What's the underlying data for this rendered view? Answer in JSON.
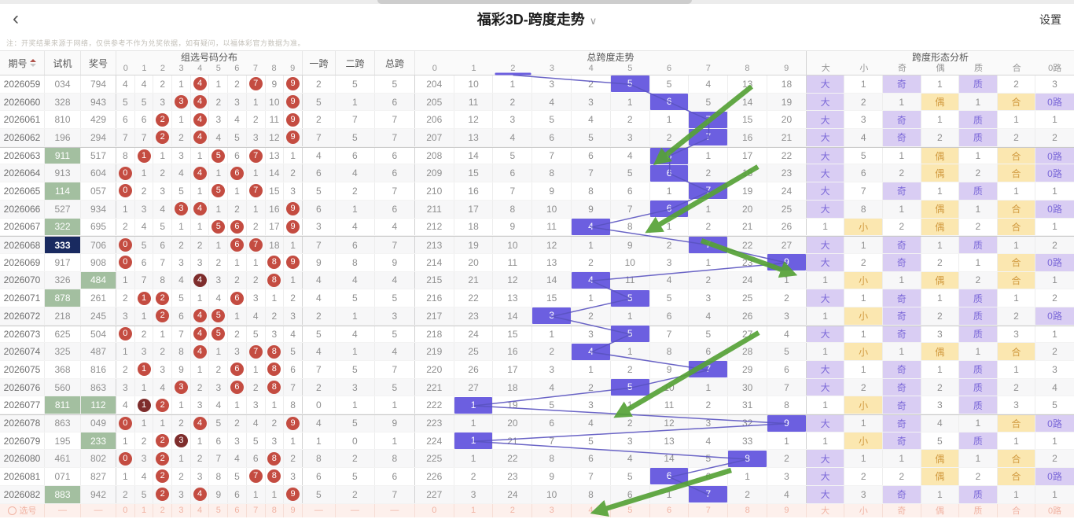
{
  "topbar": {
    "back": "‹",
    "title": "福彩3D-跨度走势",
    "caret": "∨",
    "settings": "设置"
  },
  "note": "注：开奖结果来源于网络，仅供参考不作为兑奖依据，如有疑问，以福体彩官方数据为准。",
  "table": {
    "headers": {
      "issue": "期号",
      "test": "试机",
      "prize": "奖号",
      "dist": "组选号码分布",
      "span1": "一跨",
      "span2": "二跨",
      "span_total": "总跨",
      "trend": "总跨度走势",
      "form": "跨度形态分析"
    },
    "dist_cols": [
      "0",
      "1",
      "2",
      "3",
      "4",
      "5",
      "6",
      "7",
      "8",
      "9"
    ],
    "trend_cols": [
      "0",
      "1",
      "2",
      "3",
      "4",
      "5",
      "6",
      "7",
      "8",
      "9"
    ],
    "form_cols": [
      "大",
      "小",
      "奇",
      "偶",
      "质",
      "合",
      "0路"
    ],
    "rows": [
      {
        "issue": "2026059",
        "test": "034",
        "test_hl": "",
        "prize": "794",
        "prize_hl": "",
        "dist": [
          "4",
          "4",
          "2",
          "1",
          "4r",
          "1",
          "2",
          "7r",
          "9",
          "9r"
        ],
        "spans": [
          "2",
          "5",
          "5"
        ],
        "trend": [
          "204",
          "10",
          "1",
          "3",
          "2",
          "5",
          "5",
          "4",
          "13",
          "18"
        ],
        "hit": 5,
        "form": [
          "大p",
          "1",
          "奇p",
          "1",
          "质p",
          "2",
          "3"
        ]
      },
      {
        "issue": "2026060",
        "test": "328",
        "test_hl": "",
        "prize": "943",
        "prize_hl": "",
        "dist": [
          "5",
          "5",
          "3",
          "3r",
          "4r",
          "2",
          "3",
          "1",
          "10",
          "9r"
        ],
        "spans": [
          "5",
          "1",
          "6"
        ],
        "trend": [
          "205",
          "11",
          "2",
          "4",
          "3",
          "1",
          "6",
          "5",
          "14",
          "19"
        ],
        "hit": 6,
        "form": [
          "大p",
          "2",
          "1",
          "偶y",
          "1",
          "合y",
          "0路p"
        ]
      },
      {
        "issue": "2026061",
        "test": "810",
        "test_hl": "",
        "prize": "429",
        "prize_hl": "",
        "dist": [
          "6",
          "6",
          "2r",
          "1",
          "4r",
          "3",
          "4",
          "2",
          "11",
          "9r"
        ],
        "spans": [
          "2",
          "7",
          "7"
        ],
        "trend": [
          "206",
          "12",
          "3",
          "5",
          "4",
          "2",
          "1",
          "7",
          "15",
          "20"
        ],
        "hit": 7,
        "form": [
          "大p",
          "3",
          "奇p",
          "1",
          "质p",
          "1",
          "1"
        ]
      },
      {
        "issue": "2026062",
        "test": "196",
        "test_hl": "",
        "prize": "294",
        "prize_hl": "",
        "dist": [
          "7",
          "7",
          "2r",
          "2",
          "4r",
          "4",
          "5",
          "3",
          "12",
          "9r"
        ],
        "spans": [
          "7",
          "5",
          "7"
        ],
        "trend": [
          "207",
          "13",
          "4",
          "6",
          "5",
          "3",
          "2",
          "7",
          "16",
          "21"
        ],
        "hit": 7,
        "form": [
          "大p",
          "4",
          "奇p",
          "2",
          "质p",
          "2",
          "2"
        ]
      },
      {
        "issue": "2026063",
        "test": "911",
        "test_hl": "g",
        "prize": "517",
        "prize_hl": "",
        "sep": true,
        "dist": [
          "8",
          "1r",
          "1",
          "3",
          "1",
          "5r",
          "6",
          "7r",
          "13",
          "1"
        ],
        "spans": [
          "4",
          "6",
          "6"
        ],
        "trend": [
          "208",
          "14",
          "5",
          "7",
          "6",
          "4",
          "6",
          "1",
          "17",
          "22"
        ],
        "hit": 6,
        "form": [
          "大p",
          "5",
          "1",
          "偶y",
          "1",
          "合y",
          "0路p"
        ]
      },
      {
        "issue": "2026064",
        "test": "913",
        "test_hl": "",
        "prize": "604",
        "prize_hl": "",
        "dist": [
          "0r",
          "1",
          "2",
          "4",
          "4r",
          "1",
          "6r",
          "1",
          "14",
          "2"
        ],
        "spans": [
          "6",
          "4",
          "6"
        ],
        "trend": [
          "209",
          "15",
          "6",
          "8",
          "7",
          "5",
          "6",
          "2",
          "18",
          "23"
        ],
        "hit": 6,
        "form": [
          "大p",
          "6",
          "2",
          "偶y",
          "2",
          "合y",
          "0路p"
        ]
      },
      {
        "issue": "2026065",
        "test": "114",
        "test_hl": "g",
        "prize": "057",
        "prize_hl": "",
        "dist": [
          "0r",
          "2",
          "3",
          "5",
          "1",
          "5r",
          "1",
          "7r",
          "15",
          "3"
        ],
        "spans": [
          "5",
          "2",
          "7"
        ],
        "trend": [
          "210",
          "16",
          "7",
          "9",
          "8",
          "6",
          "1",
          "7",
          "19",
          "24"
        ],
        "hit": 7,
        "form": [
          "大p",
          "7",
          "奇p",
          "1",
          "质p",
          "1",
          "1"
        ]
      },
      {
        "issue": "2026066",
        "test": "527",
        "test_hl": "",
        "prize": "934",
        "prize_hl": "",
        "dist": [
          "1",
          "3",
          "4",
          "3r",
          "4r",
          "1",
          "2",
          "1",
          "16",
          "9r"
        ],
        "spans": [
          "6",
          "1",
          "6"
        ],
        "trend": [
          "211",
          "17",
          "8",
          "10",
          "9",
          "7",
          "6",
          "1",
          "20",
          "25"
        ],
        "hit": 6,
        "form": [
          "大p",
          "8",
          "1",
          "偶y",
          "1",
          "合y",
          "0路p"
        ]
      },
      {
        "issue": "2026067",
        "test": "322",
        "test_hl": "g",
        "prize": "695",
        "prize_hl": "",
        "dist": [
          "2",
          "4",
          "5",
          "1",
          "1",
          "5r",
          "6r",
          "2",
          "17",
          "9r"
        ],
        "spans": [
          "3",
          "4",
          "4"
        ],
        "trend": [
          "212",
          "18",
          "9",
          "11",
          "4",
          "8",
          "1",
          "2",
          "21",
          "26"
        ],
        "hit": 4,
        "form": [
          "1",
          "小y",
          "2",
          "偶y",
          "2",
          "合y",
          "1"
        ]
      },
      {
        "issue": "2026068",
        "test": "333",
        "test_hl": "n",
        "prize": "706",
        "prize_hl": "",
        "sep": true,
        "dist": [
          "0r",
          "5",
          "6",
          "2",
          "2",
          "1",
          "6r",
          "7r",
          "18",
          "1"
        ],
        "spans": [
          "7",
          "6",
          "7"
        ],
        "trend": [
          "213",
          "19",
          "10",
          "12",
          "1",
          "9",
          "2",
          "7",
          "22",
          "27"
        ],
        "hit": 7,
        "form": [
          "大p",
          "1",
          "奇p",
          "1",
          "质p",
          "1",
          "2"
        ]
      },
      {
        "issue": "2026069",
        "test": "917",
        "test_hl": "",
        "prize": "908",
        "prize_hl": "",
        "dist": [
          "0r",
          "6",
          "7",
          "3",
          "3",
          "2",
          "1",
          "1",
          "8r",
          "9r"
        ],
        "spans": [
          "9",
          "8",
          "9"
        ],
        "trend": [
          "214",
          "20",
          "11",
          "13",
          "2",
          "10",
          "3",
          "1",
          "23",
          "9"
        ],
        "hit": 9,
        "form": [
          "大p",
          "2",
          "奇p",
          "2",
          "1",
          "合y",
          "0路p"
        ]
      },
      {
        "issue": "2026070",
        "test": "326",
        "test_hl": "",
        "prize": "484",
        "prize_hl": "g",
        "dist": [
          "1",
          "7",
          "8",
          "4",
          "4d",
          "3",
          "2",
          "2",
          "8r",
          "1"
        ],
        "spans": [
          "4",
          "4",
          "4"
        ],
        "trend": [
          "215",
          "21",
          "12",
          "14",
          "4",
          "11",
          "4",
          "2",
          "24",
          "1"
        ],
        "hit": 4,
        "form": [
          "1",
          "小y",
          "1",
          "偶y",
          "2",
          "合y",
          "1"
        ]
      },
      {
        "issue": "2026071",
        "test": "878",
        "test_hl": "g",
        "prize": "261",
        "prize_hl": "",
        "dist": [
          "2",
          "1r",
          "2r",
          "5",
          "1",
          "4",
          "6r",
          "3",
          "1",
          "2"
        ],
        "spans": [
          "4",
          "5",
          "5"
        ],
        "trend": [
          "216",
          "22",
          "13",
          "15",
          "1",
          "5",
          "5",
          "3",
          "25",
          "2"
        ],
        "hit": 5,
        "form": [
          "大p",
          "1",
          "奇p",
          "1",
          "质p",
          "1",
          "2"
        ]
      },
      {
        "issue": "2026072",
        "test": "218",
        "test_hl": "",
        "prize": "245",
        "prize_hl": "",
        "dist": [
          "3",
          "1",
          "2r",
          "6",
          "4r",
          "5r",
          "1",
          "4",
          "2",
          "3"
        ],
        "spans": [
          "2",
          "1",
          "3"
        ],
        "trend": [
          "217",
          "23",
          "14",
          "3",
          "2",
          "1",
          "6",
          "4",
          "26",
          "3"
        ],
        "hit": 3,
        "form": [
          "1",
          "小y",
          "奇p",
          "2",
          "质p",
          "2",
          "0路p"
        ]
      },
      {
        "issue": "2026073",
        "test": "625",
        "test_hl": "",
        "prize": "504",
        "prize_hl": "",
        "sep": true,
        "dist": [
          "0r",
          "2",
          "1",
          "7",
          "4r",
          "5r",
          "2",
          "5",
          "3",
          "4"
        ],
        "spans": [
          "5",
          "4",
          "5"
        ],
        "trend": [
          "218",
          "24",
          "15",
          "1",
          "3",
          "5",
          "7",
          "5",
          "27",
          "4"
        ],
        "hit": 5,
        "form": [
          "大p",
          "1",
          "奇p",
          "3",
          "质p",
          "3",
          "1"
        ]
      },
      {
        "issue": "2026074",
        "test": "325",
        "test_hl": "",
        "prize": "487",
        "prize_hl": "",
        "dist": [
          "1",
          "3",
          "2",
          "8",
          "4r",
          "1",
          "3",
          "7r",
          "8r",
          "5"
        ],
        "spans": [
          "4",
          "1",
          "4"
        ],
        "trend": [
          "219",
          "25",
          "16",
          "2",
          "4",
          "1",
          "8",
          "6",
          "28",
          "5"
        ],
        "hit": 4,
        "form": [
          "1",
          "小y",
          "1",
          "偶y",
          "1",
          "合y",
          "2"
        ]
      },
      {
        "issue": "2026075",
        "test": "368",
        "test_hl": "",
        "prize": "816",
        "prize_hl": "",
        "dist": [
          "2",
          "1r",
          "3",
          "9",
          "1",
          "2",
          "6r",
          "1",
          "8r",
          "6"
        ],
        "spans": [
          "7",
          "5",
          "7"
        ],
        "trend": [
          "220",
          "26",
          "17",
          "3",
          "1",
          "2",
          "9",
          "7",
          "29",
          "6"
        ],
        "hit": 7,
        "form": [
          "大p",
          "1",
          "奇p",
          "1",
          "质p",
          "1",
          "3"
        ]
      },
      {
        "issue": "2026076",
        "test": "560",
        "test_hl": "",
        "prize": "863",
        "prize_hl": "",
        "dist": [
          "3",
          "1",
          "4",
          "3r",
          "2",
          "3",
          "6r",
          "2",
          "8r",
          "7"
        ],
        "spans": [
          "2",
          "3",
          "5"
        ],
        "trend": [
          "221",
          "27",
          "18",
          "4",
          "2",
          "5",
          "10",
          "1",
          "30",
          "7"
        ],
        "hit": 5,
        "form": [
          "大p",
          "2",
          "奇p",
          "2",
          "质p",
          "2",
          "4"
        ]
      },
      {
        "issue": "2026077",
        "test": "811",
        "test_hl": "g",
        "prize": "112",
        "prize_hl": "g",
        "dist": [
          "4",
          "1d",
          "2r",
          "1",
          "3",
          "4",
          "1",
          "3",
          "1",
          "8"
        ],
        "spans": [
          "0",
          "1",
          "1"
        ],
        "trend": [
          "222",
          "1",
          "19",
          "5",
          "3",
          "1",
          "11",
          "2",
          "31",
          "8"
        ],
        "hit": 1,
        "form": [
          "1",
          "小y",
          "奇p",
          "3",
          "质p",
          "3",
          "5"
        ]
      },
      {
        "issue": "2026078",
        "test": "863",
        "test_hl": "",
        "prize": "049",
        "prize_hl": "",
        "sep": true,
        "dist": [
          "0r",
          "1",
          "1",
          "2",
          "4r",
          "5",
          "2",
          "4",
          "2",
          "9r"
        ],
        "spans": [
          "4",
          "5",
          "9"
        ],
        "trend": [
          "223",
          "1",
          "20",
          "6",
          "4",
          "2",
          "12",
          "3",
          "32",
          "9"
        ],
        "hit": 9,
        "form": [
          "大p",
          "1",
          "奇p",
          "4",
          "1",
          "合y",
          "0路p"
        ]
      },
      {
        "issue": "2026079",
        "test": "195",
        "test_hl": "",
        "prize": "233",
        "prize_hl": "g",
        "dist": [
          "1",
          "2",
          "2r",
          "3d",
          "1",
          "6",
          "3",
          "5",
          "3",
          "1"
        ],
        "spans": [
          "1",
          "0",
          "1"
        ],
        "trend": [
          "224",
          "1",
          "21",
          "7",
          "5",
          "3",
          "13",
          "4",
          "33",
          "1"
        ],
        "hit": 1,
        "form": [
          "1",
          "小y",
          "奇p",
          "5",
          "质p",
          "1",
          "1"
        ]
      },
      {
        "issue": "2026080",
        "test": "461",
        "test_hl": "",
        "prize": "802",
        "prize_hl": "",
        "dist": [
          "0r",
          "3",
          "2r",
          "1",
          "2",
          "7",
          "4",
          "6",
          "8r",
          "2"
        ],
        "spans": [
          "8",
          "2",
          "8"
        ],
        "trend": [
          "225",
          "1",
          "22",
          "8",
          "6",
          "4",
          "14",
          "5",
          "8",
          "2"
        ],
        "hit": 8,
        "form": [
          "大p",
          "1",
          "1",
          "偶y",
          "1",
          "合y",
          "2"
        ]
      },
      {
        "issue": "2026081",
        "test": "071",
        "test_hl": "",
        "prize": "827",
        "prize_hl": "",
        "dist": [
          "1",
          "4",
          "2r",
          "2",
          "3",
          "8",
          "5",
          "7r",
          "8r",
          "3"
        ],
        "spans": [
          "6",
          "5",
          "6"
        ],
        "trend": [
          "226",
          "2",
          "23",
          "9",
          "7",
          "5",
          "6",
          "6",
          "1",
          "3"
        ],
        "hit": 6,
        "form": [
          "大p",
          "2",
          "2",
          "偶y",
          "2",
          "合y",
          "0路p"
        ]
      },
      {
        "issue": "2026082",
        "test": "883",
        "test_hl": "g",
        "prize": "942",
        "prize_hl": "",
        "dist": [
          "2",
          "5",
          "2r",
          "3",
          "4r",
          "9",
          "6",
          "1",
          "1",
          "9r"
        ],
        "spans": [
          "5",
          "2",
          "7"
        ],
        "trend": [
          "227",
          "3",
          "24",
          "10",
          "8",
          "6",
          "1",
          "7",
          "2",
          "4"
        ],
        "hit": 7,
        "form": [
          "大p",
          "3",
          "奇p",
          "1",
          "质p",
          "1",
          "1"
        ]
      }
    ],
    "footer": {
      "issue": "选号",
      "test": "—",
      "prize": "—",
      "dist": [
        "0",
        "1",
        "2",
        "3",
        "4",
        "5",
        "6",
        "7",
        "8",
        "9"
      ],
      "spans": [
        "—",
        "—",
        "—"
      ],
      "trend": [
        "0",
        "1",
        "2",
        "3",
        "4",
        "5",
        "6",
        "7",
        "8",
        "9"
      ],
      "form": [
        "大",
        "小",
        "奇",
        "偶",
        "质",
        "合",
        "0路"
      ]
    }
  },
  "annotations": {
    "trend_start_col": 2,
    "arrows": [
      [
        956,
        110,
        836,
        206
      ],
      [
        964,
        212,
        826,
        293
      ],
      [
        892,
        306,
        1008,
        348
      ],
      [
        965,
        423,
        786,
        528
      ],
      [
        930,
        598,
        757,
        651
      ]
    ]
  },
  "colors": {
    "accent": "#6c5fe0",
    "trend_line": "#5a53c0",
    "arrow_green": "#56a237",
    "circle_red": "#c44c41",
    "circle_dark": "#7e2d2c",
    "hl_green": "#a3bfa0",
    "hl_navy": "#192a60",
    "form_purple_bg": "#d9cdf3",
    "form_purple_text": "#7b68d8",
    "form_yellow_bg": "#fbe7b0",
    "form_yellow_text": "#d19a3f",
    "footer_bg": "#fdf0ec",
    "footer_text": "#f0b3a3"
  }
}
